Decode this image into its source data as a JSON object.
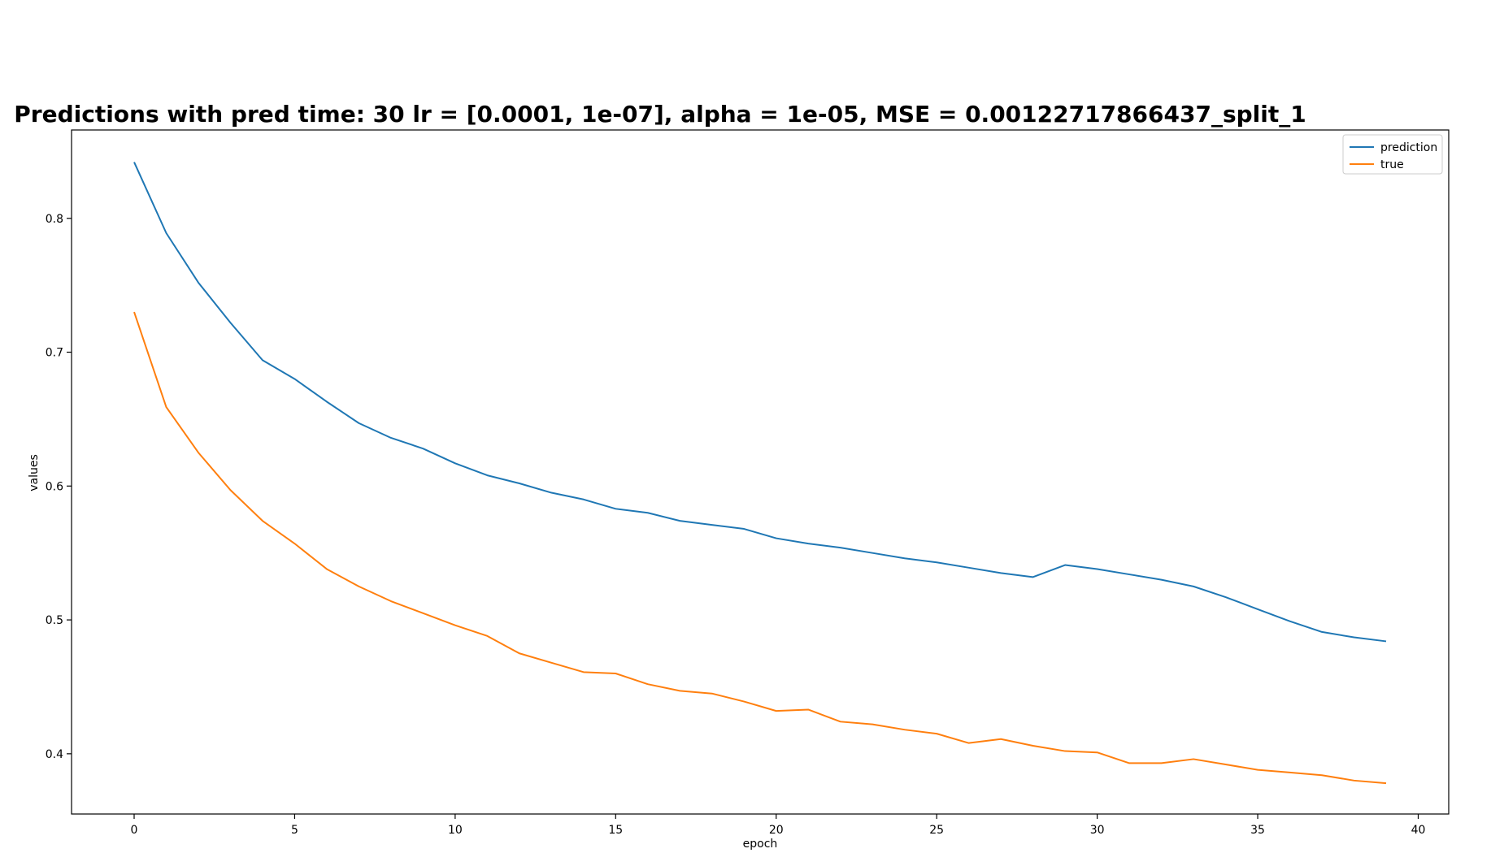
{
  "chart_data": {
    "type": "line",
    "title": "Predictions with pred time: 30 lr = [0.0001, 1e-07], alpha = 1e-05, MSE = 0.00122717866437_split_1",
    "xlabel": "epoch",
    "ylabel": "values",
    "xlim": [
      -1.95,
      40.95
    ],
    "ylim": [
      0.355,
      0.866
    ],
    "xticks": [
      0,
      5,
      10,
      15,
      20,
      25,
      30,
      35,
      40
    ],
    "yticks": [
      0.4,
      0.5,
      0.6,
      0.7,
      0.8
    ],
    "xtick_labels": [
      "0",
      "5",
      "10",
      "15",
      "20",
      "25",
      "30",
      "35",
      "40"
    ],
    "ytick_labels": [
      "0.4",
      "0.5",
      "0.6",
      "0.7",
      "0.8"
    ],
    "grid": false,
    "legend_position": "top-right",
    "x": [
      0,
      1,
      2,
      3,
      4,
      5,
      6,
      7,
      8,
      9,
      10,
      11,
      12,
      13,
      14,
      15,
      16,
      17,
      18,
      19,
      20,
      21,
      22,
      23,
      24,
      25,
      26,
      27,
      28,
      29,
      30,
      31,
      32,
      33,
      34,
      35,
      36,
      37,
      38,
      39
    ],
    "series": [
      {
        "name": "prediction",
        "color": "#1f77b4",
        "values": [
          0.842,
          0.789,
          0.752,
          0.722,
          0.694,
          0.68,
          0.663,
          0.647,
          0.636,
          0.628,
          0.617,
          0.608,
          0.602,
          0.595,
          0.59,
          0.583,
          0.58,
          0.574,
          0.571,
          0.568,
          0.561,
          0.557,
          0.554,
          0.55,
          0.546,
          0.543,
          0.539,
          0.535,
          0.532,
          0.541,
          0.538,
          0.534,
          0.53,
          0.525,
          0.517,
          0.508,
          0.499,
          0.491,
          0.487,
          0.484
        ]
      },
      {
        "name": "true",
        "color": "#ff7f0e",
        "values": [
          0.73,
          0.659,
          0.625,
          0.597,
          0.574,
          0.557,
          0.538,
          0.525,
          0.514,
          0.505,
          0.496,
          0.488,
          0.475,
          0.468,
          0.461,
          0.46,
          0.452,
          0.447,
          0.445,
          0.439,
          0.432,
          0.433,
          0.424,
          0.422,
          0.418,
          0.415,
          0.408,
          0.411,
          0.406,
          0.402,
          0.401,
          0.393,
          0.393,
          0.396,
          0.392,
          0.388,
          0.386,
          0.384,
          0.38,
          0.378
        ]
      }
    ]
  }
}
